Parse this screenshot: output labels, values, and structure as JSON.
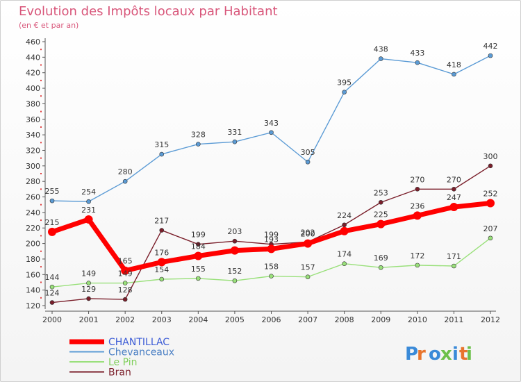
{
  "chart_data": {
    "type": "line",
    "title": "Evolution des Impôts locaux par Habitant",
    "subtitle": "(en € et par an)",
    "categories": [
      "2000",
      "2001",
      "2002",
      "2003",
      "2004",
      "2005",
      "2006",
      "2007",
      "2008",
      "2009",
      "2010",
      "2011",
      "2012"
    ],
    "ylim": [
      120,
      460
    ],
    "yticks": [
      120,
      140,
      160,
      180,
      200,
      220,
      240,
      260,
      280,
      300,
      320,
      340,
      360,
      380,
      400,
      420,
      440,
      460
    ],
    "grid": false,
    "legend_position": "bottom-left",
    "series": [
      {
        "name": "CHANTILLAC",
        "color": "#ff0000",
        "label_color": "#3b5bd6",
        "values": [
          215,
          231,
          165,
          176,
          184,
          191,
          193,
          200,
          216,
          225,
          236,
          247,
          252
        ],
        "labels": [
          "215",
          "231",
          "165",
          "176",
          "184",
          "",
          "193",
          "200",
          "",
          "225",
          "236",
          "247",
          "252"
        ]
      },
      {
        "name": "Chevanceaux",
        "color": "#5b9bd5",
        "label_color": "#4a7fc4",
        "values": [
          255,
          254,
          280,
          315,
          328,
          331,
          343,
          305,
          395,
          438,
          433,
          418,
          442
        ],
        "labels": [
          "255",
          "254",
          "280",
          "315",
          "328",
          "331",
          "343",
          "305",
          "395",
          "438",
          "433",
          "418",
          "442"
        ]
      },
      {
        "name": "Le Pin",
        "color": "#99e07a",
        "label_color": "#7fcf5a",
        "values": [
          144,
          149,
          149,
          154,
          155,
          152,
          158,
          157,
          174,
          169,
          172,
          171,
          207
        ],
        "labels": [
          "144",
          "149",
          "149",
          "154",
          "155",
          "152",
          "158",
          "157",
          "174",
          "169",
          "172",
          "171",
          "207"
        ]
      },
      {
        "name": "Bran",
        "color": "#7a1e2a",
        "label_color": "#7a1e2a",
        "values": [
          124,
          129,
          128,
          217,
          199,
          203,
          199,
          202,
          224,
          253,
          270,
          270,
          300
        ],
        "labels": [
          "124",
          "129",
          "128",
          "217",
          "199",
          "203",
          "199",
          "202",
          "224",
          "253",
          "270",
          "270",
          "300"
        ]
      }
    ]
  },
  "logo": {
    "text": "Proxiti",
    "colors": [
      "#3a8ad8",
      "#e8742c",
      "#3a8ad8",
      "#6cc04a",
      "#3a8ad8",
      "#e8742c",
      "#6cc04a"
    ]
  }
}
